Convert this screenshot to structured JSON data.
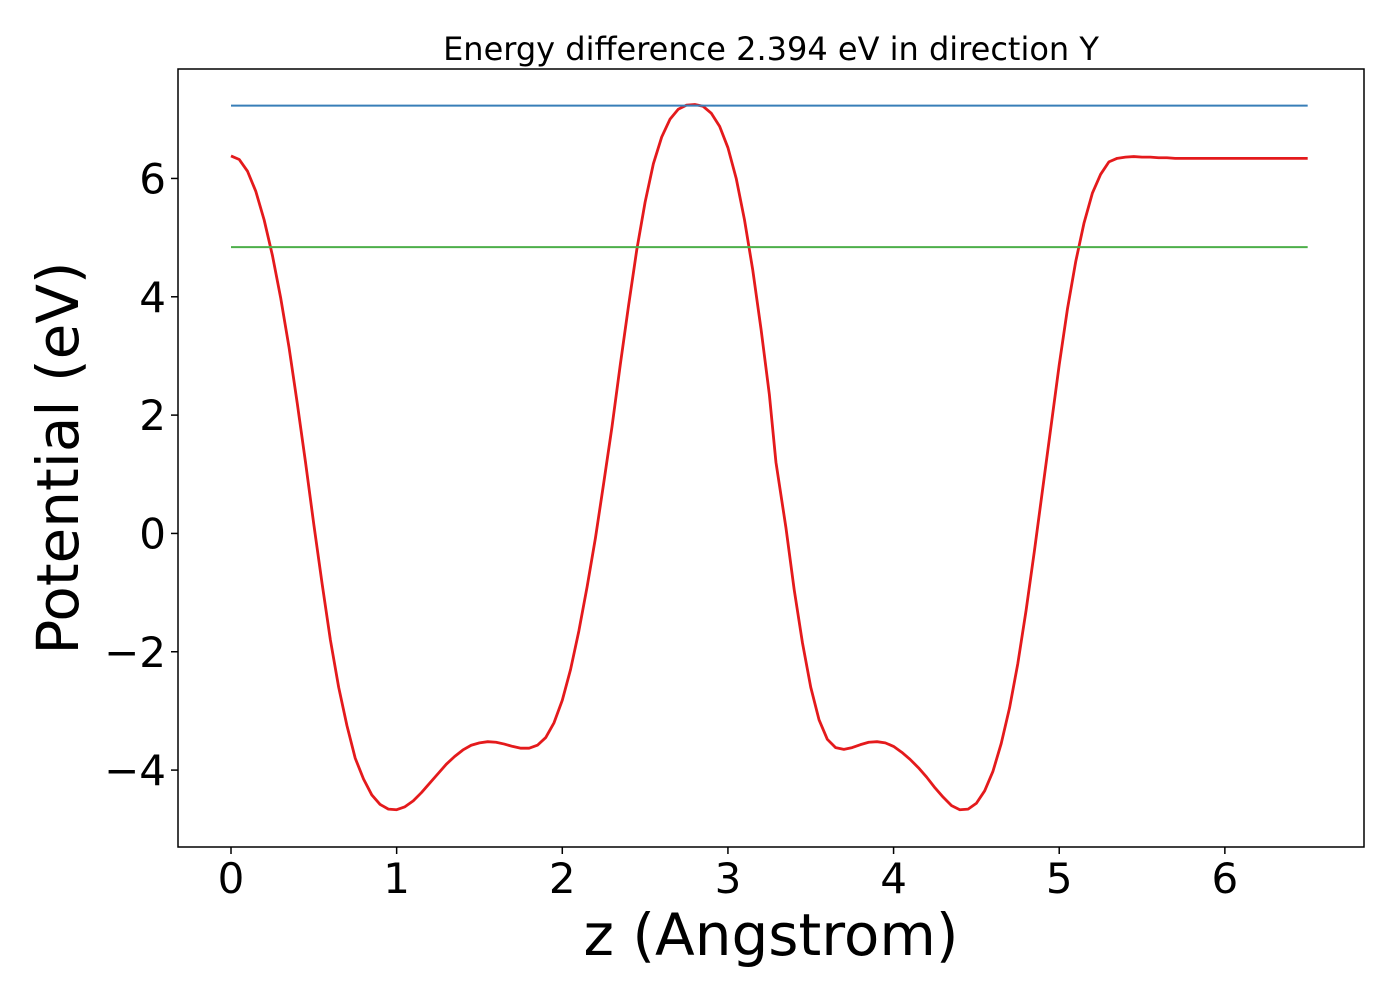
{
  "chart_data": {
    "type": "line",
    "title": "Energy difference 2.394 eV in direction Y",
    "xlabel": "z (Angstrom)",
    "ylabel": "Potential (eV)",
    "xlim": [
      -0.32,
      6.84
    ],
    "ylim": [
      -5.3,
      7.85
    ],
    "grid": false,
    "x_ticks": [
      0,
      1,
      2,
      3,
      4,
      5,
      6
    ],
    "x_tick_labels": [
      "0",
      "1",
      "2",
      "3",
      "4",
      "5",
      "6"
    ],
    "y_ticks": [
      -4,
      -2,
      0,
      2,
      4,
      6
    ],
    "y_tick_labels": [
      "−4",
      "−2",
      "0",
      "2",
      "4",
      "6"
    ],
    "series": [
      {
        "color": "#e41a1c",
        "x": [
          0,
          0.05,
          0.1,
          0.15,
          0.2,
          0.25,
          0.3,
          0.35,
          0.4,
          0.45,
          0.5,
          0.55,
          0.6,
          0.65,
          0.7,
          0.75,
          0.8,
          0.85,
          0.9,
          0.95,
          1.0,
          1.05,
          1.1,
          1.15,
          1.2,
          1.25,
          1.3,
          1.35,
          1.4,
          1.45,
          1.5,
          1.55,
          1.6,
          1.65,
          1.7,
          1.75,
          1.8,
          1.85,
          1.9,
          1.95,
          2.0,
          2.05,
          2.1,
          2.15,
          2.2,
          2.25,
          2.3,
          2.35,
          2.4,
          2.45,
          2.5,
          2.55,
          2.6,
          2.65,
          2.7,
          2.75,
          2.8,
          2.85,
          2.9,
          2.95,
          3.0,
          3.05,
          3.1,
          3.15,
          3.2,
          3.25,
          3.29,
          3.35,
          3.4,
          3.45,
          3.5,
          3.55,
          3.6,
          3.65,
          3.7,
          3.75,
          3.8,
          3.85,
          3.9,
          3.95,
          4.0,
          4.05,
          4.1,
          4.15,
          4.2,
          4.25,
          4.3,
          4.35,
          4.4,
          4.45,
          4.5,
          4.55,
          4.6,
          4.65,
          4.7,
          4.75,
          4.8,
          4.85,
          4.9,
          4.95,
          5.0,
          5.05,
          5.1,
          5.15,
          5.2,
          5.25,
          5.3,
          5.35,
          5.4,
          5.45,
          5.5,
          5.55,
          5.6,
          5.65,
          5.7,
          5.75,
          5.8,
          5.85,
          5.9,
          5.95,
          6.0,
          6.05,
          6.1,
          6.15,
          6.2,
          6.25,
          6.3,
          6.35,
          6.4,
          6.45,
          6.5
        ],
        "y": [
          6.38,
          6.32,
          6.12,
          5.78,
          5.3,
          4.7,
          3.98,
          3.15,
          2.2,
          1.2,
          0.15,
          -0.85,
          -1.8,
          -2.6,
          -3.25,
          -3.8,
          -4.15,
          -4.42,
          -4.58,
          -4.66,
          -4.67,
          -4.62,
          -4.52,
          -4.38,
          -4.22,
          -4.06,
          -3.9,
          -3.77,
          -3.66,
          -3.58,
          -3.54,
          -3.52,
          -3.53,
          -3.56,
          -3.6,
          -3.63,
          -3.63,
          -3.58,
          -3.45,
          -3.2,
          -2.82,
          -2.3,
          -1.65,
          -0.9,
          -0.08,
          0.85,
          1.8,
          2.85,
          3.85,
          4.8,
          5.6,
          6.25,
          6.7,
          7.0,
          7.17,
          7.24,
          7.25,
          7.22,
          7.1,
          6.88,
          6.52,
          6.0,
          5.3,
          4.45,
          3.45,
          2.35,
          1.2,
          0.1,
          -0.95,
          -1.85,
          -2.6,
          -3.15,
          -3.48,
          -3.62,
          -3.65,
          -3.62,
          -3.57,
          -3.53,
          -3.52,
          -3.54,
          -3.6,
          -3.7,
          -3.82,
          -3.96,
          -4.12,
          -4.3,
          -4.46,
          -4.6,
          -4.67,
          -4.66,
          -4.56,
          -4.35,
          -4.02,
          -3.55,
          -2.95,
          -2.2,
          -1.3,
          -0.3,
          0.75,
          1.8,
          2.85,
          3.8,
          4.6,
          5.25,
          5.75,
          6.07,
          6.28,
          6.34,
          6.36,
          6.37,
          6.36,
          6.36,
          6.35,
          6.35,
          6.34,
          6.34,
          6.34,
          6.34,
          6.34,
          6.34,
          6.34,
          6.34,
          6.34,
          6.34,
          6.34,
          6.34,
          6.34,
          6.34,
          6.34,
          6.34,
          6.34
        ]
      },
      {
        "color": "#377eb8",
        "x": [
          0,
          6.5
        ],
        "y": [
          7.23,
          7.23
        ]
      },
      {
        "color": "#4daf4a",
        "x": [
          0,
          6.5
        ],
        "y": [
          4.84,
          4.84
        ]
      }
    ]
  }
}
